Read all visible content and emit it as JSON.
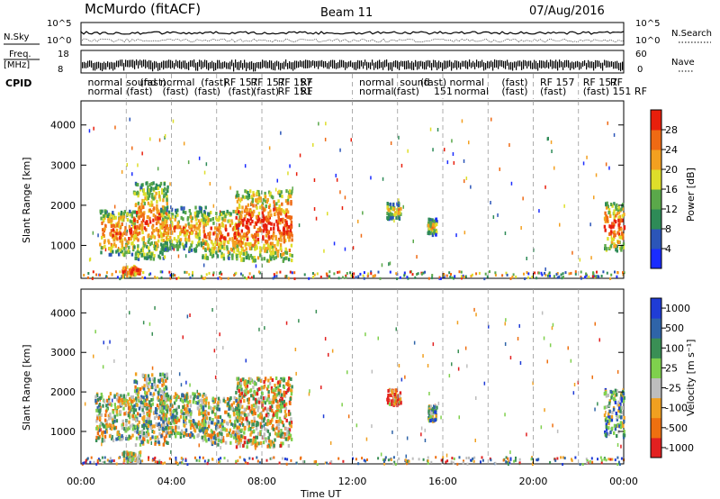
{
  "header": {
    "station": "McMurdo (fitACF)",
    "beam": "Beam 11",
    "date": "07/Aug/2016"
  },
  "strips": {
    "nsky_label": "N.Sky",
    "nsearch_label": "N.Search",
    "nsky_ticks": [
      "10^5",
      "10^0"
    ],
    "freq_label_1": "Freq.",
    "freq_label_2": "[MHz]",
    "freq_ticks": [
      "18",
      "8"
    ],
    "nave_label": "Nave",
    "nave_ticks": [
      "60",
      "0"
    ],
    "cpid_label": "CPID"
  },
  "cpid_modes_top": [
    {
      "time": 0.3,
      "text": "normal"
    },
    {
      "time": 2.0,
      "text": "sound"
    },
    {
      "time": 2.6,
      "text": "(fast)"
    },
    {
      "time": 3.5,
      "text": "normal"
    },
    {
      "time": 5.3,
      "text": "(fast)"
    },
    {
      "time": 6.3,
      "text": "RF 157"
    },
    {
      "time": 7.5,
      "text": "RF 157"
    },
    {
      "time": 8.7,
      "text": "RF 157"
    },
    {
      "time": 9.7,
      "text": "RF"
    },
    {
      "time": 12.3,
      "text": "normal"
    },
    {
      "time": 14.1,
      "text": "sound"
    },
    {
      "time": 15.0,
      "text": "(fast)"
    },
    {
      "time": 16.3,
      "text": "normal"
    },
    {
      "time": 18.6,
      "text": "(fast)"
    },
    {
      "time": 20.3,
      "text": "RF 157"
    },
    {
      "time": 22.2,
      "text": "RF 157"
    },
    {
      "time": 23.4,
      "text": "RF"
    }
  ],
  "cpid_modes_bottom": [
    {
      "time": 0.3,
      "text": "normal"
    },
    {
      "time": 2.0,
      "text": "(fast)"
    },
    {
      "time": 3.6,
      "text": "(fast)"
    },
    {
      "time": 5.0,
      "text": "(fast)"
    },
    {
      "time": 6.5,
      "text": "(fast)"
    },
    {
      "time": 7.6,
      "text": "(fast)"
    },
    {
      "time": 8.7,
      "text": "RF 151"
    },
    {
      "time": 9.7,
      "text": "RF"
    },
    {
      "time": 12.3,
      "text": "normal"
    },
    {
      "time": 13.8,
      "text": "(fast)"
    },
    {
      "time": 15.6,
      "text": "151"
    },
    {
      "time": 16.5,
      "text": "normal"
    },
    {
      "time": 18.6,
      "text": "(fast)"
    },
    {
      "time": 20.3,
      "text": "(fast)"
    },
    {
      "time": 22.2,
      "text": "(fast)"
    },
    {
      "time": 23.5,
      "text": "151 RF"
    }
  ],
  "chart_data": {
    "type": "heatmap",
    "time_ticks": [
      "00:00",
      "04:00",
      "08:00",
      "12:00",
      "16:00",
      "20:00",
      "00:00"
    ],
    "time_tick_hours": [
      0,
      4,
      8,
      12,
      16,
      20,
      24
    ],
    "xlabel": "Time UT",
    "ylabel": "Slant Range [km]",
    "xlim": [
      0,
      24
    ],
    "ylim": [
      180,
      4600
    ],
    "ytick_values": [
      1000,
      2000,
      3000,
      4000
    ],
    "dashed_time_lines": [
      2,
      4,
      6,
      8,
      12,
      14,
      16,
      18,
      20,
      22
    ],
    "power_panel": {
      "colorbar_label": "Power [dB]",
      "colorbar_ticks": [
        "4",
        "8",
        "12",
        "16",
        "20",
        "24",
        "28"
      ],
      "colorbar_colors": [
        "#1a2cff",
        "#2b55b8",
        "#2e8b57",
        "#5aa84a",
        "#dede2a",
        "#f3a020",
        "#ef6a14",
        "#e81f0c"
      ],
      "scatter_regions": [
        {
          "t0": 0.8,
          "t1": 2.5,
          "r0": 800,
          "r1": 1900,
          "level": 0.6
        },
        {
          "t0": 2.3,
          "t1": 3.8,
          "r0": 700,
          "r1": 2600,
          "level": 0.55
        },
        {
          "t0": 3.5,
          "t1": 5.5,
          "r0": 900,
          "r1": 2000,
          "level": 0.45
        },
        {
          "t0": 5.3,
          "t1": 7.0,
          "r0": 700,
          "r1": 1900,
          "level": 0.6
        },
        {
          "t0": 6.8,
          "t1": 9.3,
          "r0": 650,
          "r1": 2400,
          "level": 0.75
        },
        {
          "t0": 1.8,
          "t1": 2.6,
          "r0": 280,
          "r1": 520,
          "level": 0.85
        },
        {
          "t0": 13.5,
          "t1": 14.1,
          "r0": 1700,
          "r1": 2100,
          "level": 0.3
        },
        {
          "t0": 15.3,
          "t1": 15.7,
          "r0": 1300,
          "r1": 1700,
          "level": 0.3
        },
        {
          "t0": 23.1,
          "t1": 24.0,
          "r0": 900,
          "r1": 2100,
          "level": 0.7
        }
      ]
    },
    "velocity_panel": {
      "colorbar_label": "Velocity [m s⁻¹]",
      "colorbar_ticks": [
        "1000",
        "500",
        "100",
        "25",
        "-25",
        "-100",
        "-500",
        "-1000"
      ],
      "colorbar_colors": [
        "#1f3cd6",
        "#2f64a8",
        "#3a8f55",
        "#7fd04d",
        "#bdbdbd",
        "#f0a020",
        "#ee7010",
        "#e22020"
      ],
      "scatter_regions": [
        {
          "t0": 0.6,
          "t1": 2.3,
          "r0": 800,
          "r1": 2000,
          "level": 0.5
        },
        {
          "t0": 2.3,
          "t1": 3.8,
          "r0": 700,
          "r1": 2500,
          "level": 0.5
        },
        {
          "t0": 3.5,
          "t1": 5.5,
          "r0": 900,
          "r1": 2000,
          "level": 0.5
        },
        {
          "t0": 5.3,
          "t1": 7.0,
          "r0": 700,
          "r1": 1900,
          "level": 0.5
        },
        {
          "t0": 6.8,
          "t1": 9.3,
          "r0": 650,
          "r1": 2400,
          "level": 0.6
        },
        {
          "t0": 1.8,
          "t1": 2.6,
          "r0": 280,
          "r1": 520,
          "level": 0.5
        },
        {
          "t0": 13.5,
          "t1": 14.1,
          "r0": 1700,
          "r1": 2100,
          "level": 0.8
        },
        {
          "t0": 15.3,
          "t1": 15.7,
          "r0": 1300,
          "r1": 1700,
          "level": 0.4
        },
        {
          "t0": 23.1,
          "t1": 24.0,
          "r0": 900,
          "r1": 2100,
          "level": 0.35
        }
      ]
    }
  }
}
